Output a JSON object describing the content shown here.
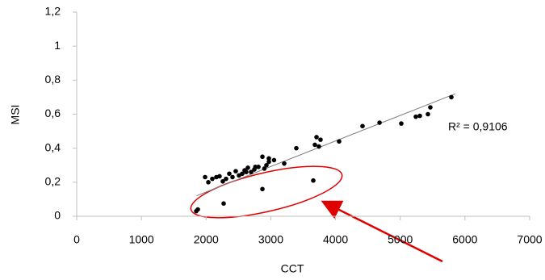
{
  "chart_data": {
    "type": "scatter",
    "x_label": "CCT",
    "y_label": "MSI",
    "annotation": "R² = 0,9106",
    "color": "#000000",
    "trendline_color": "#7f7f7f",
    "trendline": {
      "x": [
        1850,
        5850
      ],
      "values": [
        0.12,
        0.72
      ]
    },
    "x": [
      5790,
      5465,
      5428,
      5303,
      5241,
      5016,
      4680,
      4417,
      4055,
      3768,
      3706,
      3743,
      3681,
      3394,
      3207,
      2970,
      2970,
      2932,
      2870,
      2808,
      2745,
      2695,
      2645,
      2595,
      2558,
      2508,
      2458,
      2408,
      2358,
      2308,
      2258,
      2208,
      2158,
      2096,
      2034,
      1984,
      2900,
      3050,
      2760,
      2620,
      3656,
      2870,
      2271,
      1847,
      1872
    ],
    "values": [
      0.7,
      0.64,
      0.6,
      0.59,
      0.585,
      0.545,
      0.55,
      0.53,
      0.44,
      0.45,
      0.465,
      0.41,
      0.42,
      0.4,
      0.31,
      0.34,
      0.32,
      0.3,
      0.35,
      0.29,
      0.275,
      0.26,
      0.285,
      0.27,
      0.25,
      0.24,
      0.265,
      0.23,
      0.25,
      0.22,
      0.205,
      0.235,
      0.23,
      0.22,
      0.2,
      0.23,
      0.28,
      0.33,
      0.29,
      0.26,
      0.21,
      0.16,
      0.075,
      0.03,
      0.04
    ],
    "xlim": [
      0,
      7000
    ],
    "xticks": [
      0,
      1000,
      2000,
      3000,
      4000,
      5000,
      6000,
      7000
    ],
    "ylim": [
      0,
      1.2
    ],
    "yticks": [
      0,
      {
        "value": 0.2,
        "label": "0,2"
      },
      {
        "value": 0.4,
        "label": "0,4"
      },
      {
        "value": 0.6,
        "label": "0,6"
      },
      {
        "value": 0.8,
        "label": "0,8"
      },
      1,
      {
        "value": 1.2,
        "label": "1,2"
      }
    ],
    "grid": false
  }
}
